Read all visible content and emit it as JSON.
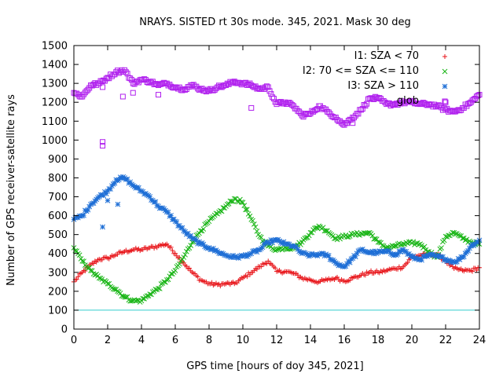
{
  "chart_data": {
    "type": "scatter",
    "title": "NRAYS. SISTED rt 30s mode. 345, 2021. Mask 30 deg",
    "xlabel": "GPS time [hours of doy 345, 2021]",
    "ylabel": "Number of GPS receiver-satellite rays",
    "xlim": [
      0,
      24
    ],
    "ylim": [
      0,
      1500
    ],
    "x_ticks": [
      0,
      2,
      4,
      6,
      8,
      10,
      12,
      14,
      16,
      18,
      20,
      22,
      24
    ],
    "y_ticks": [
      0,
      100,
      200,
      300,
      400,
      500,
      600,
      700,
      800,
      900,
      1000,
      1100,
      1200,
      1300,
      1400,
      1500
    ],
    "legend_position": "top-right",
    "reference_line": {
      "y": 100,
      "color": "#33cccc"
    },
    "series": [
      {
        "name": "I1: SZA < 70",
        "marker": "plus",
        "color": "#e8161b",
        "points": [
          [
            0.0,
            250
          ],
          [
            0.5,
            300
          ],
          [
            1.0,
            340
          ],
          [
            1.5,
            370
          ],
          [
            2.0,
            375
          ],
          [
            2.5,
            395
          ],
          [
            3.0,
            410
          ],
          [
            3.5,
            420
          ],
          [
            4.0,
            420
          ],
          [
            4.5,
            430
          ],
          [
            5.0,
            440
          ],
          [
            5.5,
            450
          ],
          [
            6.0,
            400
          ],
          [
            6.5,
            350
          ],
          [
            7.0,
            300
          ],
          [
            7.5,
            260
          ],
          [
            8.0,
            240
          ],
          [
            8.5,
            235
          ],
          [
            9.0,
            240
          ],
          [
            9.5,
            240
          ],
          [
            10.0,
            270
          ],
          [
            10.5,
            300
          ],
          [
            11.0,
            330
          ],
          [
            11.5,
            360
          ],
          [
            12.0,
            305
          ],
          [
            12.5,
            305
          ],
          [
            13.0,
            295
          ],
          [
            13.5,
            270
          ],
          [
            14.0,
            260
          ],
          [
            14.5,
            250
          ],
          [
            15.0,
            260
          ],
          [
            15.5,
            270
          ],
          [
            16.0,
            255
          ],
          [
            16.5,
            270
          ],
          [
            17.0,
            285
          ],
          [
            17.5,
            300
          ],
          [
            18.0,
            300
          ],
          [
            18.5,
            310
          ],
          [
            19.0,
            320
          ],
          [
            19.5,
            330
          ],
          [
            20.0,
            380
          ],
          [
            20.5,
            390
          ],
          [
            21.0,
            395
          ],
          [
            21.5,
            395
          ],
          [
            22.0,
            360
          ],
          [
            22.5,
            320
          ],
          [
            23.0,
            310
          ],
          [
            23.5,
            310
          ],
          [
            24.0,
            325
          ]
        ]
      },
      {
        "name": "I2: 70 <= SZA <= 110",
        "marker": "cross",
        "color": "#19b516",
        "points": [
          [
            0.0,
            430
          ],
          [
            0.5,
            360
          ],
          [
            1.0,
            310
          ],
          [
            1.5,
            270
          ],
          [
            2.0,
            240
          ],
          [
            2.5,
            210
          ],
          [
            3.0,
            170
          ],
          [
            3.5,
            150
          ],
          [
            4.0,
            150
          ],
          [
            4.5,
            185
          ],
          [
            5.0,
            215
          ],
          [
            5.5,
            260
          ],
          [
            6.0,
            310
          ],
          [
            6.5,
            380
          ],
          [
            7.0,
            460
          ],
          [
            7.5,
            520
          ],
          [
            8.0,
            570
          ],
          [
            8.5,
            610
          ],
          [
            9.0,
            650
          ],
          [
            9.5,
            690
          ],
          [
            10.0,
            670
          ],
          [
            10.5,
            580
          ],
          [
            11.0,
            490
          ],
          [
            11.5,
            440
          ],
          [
            12.0,
            420
          ],
          [
            12.5,
            430
          ],
          [
            13.0,
            430
          ],
          [
            13.5,
            460
          ],
          [
            14.0,
            510
          ],
          [
            14.5,
            545
          ],
          [
            15.0,
            520
          ],
          [
            15.5,
            480
          ],
          [
            16.0,
            490
          ],
          [
            16.5,
            500
          ],
          [
            17.0,
            505
          ],
          [
            17.5,
            510
          ],
          [
            18.0,
            460
          ],
          [
            18.5,
            430
          ],
          [
            19.0,
            440
          ],
          [
            19.5,
            450
          ],
          [
            20.0,
            455
          ],
          [
            20.5,
            450
          ],
          [
            21.0,
            410
          ],
          [
            21.5,
            380
          ],
          [
            22.0,
            490
          ],
          [
            22.5,
            510
          ],
          [
            23.0,
            480
          ],
          [
            23.5,
            460
          ],
          [
            24.0,
            450
          ]
        ]
      },
      {
        "name": "I3: SZA > 110",
        "marker": "star",
        "color": "#1f6fd6",
        "points": [
          [
            0.0,
            580
          ],
          [
            0.5,
            600
          ],
          [
            1.0,
            660
          ],
          [
            1.5,
            700
          ],
          [
            2.0,
            730
          ],
          [
            2.5,
            790
          ],
          [
            3.0,
            800
          ],
          [
            3.5,
            760
          ],
          [
            4.0,
            730
          ],
          [
            4.5,
            700
          ],
          [
            5.0,
            650
          ],
          [
            5.5,
            620
          ],
          [
            6.0,
            570
          ],
          [
            6.5,
            520
          ],
          [
            7.0,
            480
          ],
          [
            7.5,
            450
          ],
          [
            8.0,
            430
          ],
          [
            8.5,
            410
          ],
          [
            9.0,
            390
          ],
          [
            9.5,
            380
          ],
          [
            10.0,
            385
          ],
          [
            10.5,
            400
          ],
          [
            11.0,
            420
          ],
          [
            11.5,
            460
          ],
          [
            12.0,
            470
          ],
          [
            12.5,
            450
          ],
          [
            13.0,
            440
          ],
          [
            13.5,
            400
          ],
          [
            14.0,
            390
          ],
          [
            14.5,
            395
          ],
          [
            15.0,
            390
          ],
          [
            15.5,
            350
          ],
          [
            16.0,
            330
          ],
          [
            16.5,
            375
          ],
          [
            17.0,
            420
          ],
          [
            17.5,
            405
          ],
          [
            18.0,
            405
          ],
          [
            18.5,
            410
          ],
          [
            19.0,
            395
          ],
          [
            19.5,
            420
          ],
          [
            20.0,
            380
          ],
          [
            20.5,
            370
          ],
          [
            21.0,
            390
          ],
          [
            21.5,
            385
          ],
          [
            22.0,
            370
          ],
          [
            22.5,
            355
          ],
          [
            23.0,
            380
          ],
          [
            23.5,
            440
          ],
          [
            24.0,
            470
          ]
        ],
        "outliers": [
          [
            1.7,
            540
          ],
          [
            2.0,
            680
          ],
          [
            2.6,
            660
          ]
        ]
      },
      {
        "name": "glob",
        "marker": "square",
        "color": "#b020ee",
        "points": [
          [
            0.0,
            1250
          ],
          [
            0.5,
            1230
          ],
          [
            1.0,
            1290
          ],
          [
            1.5,
            1300
          ],
          [
            2.0,
            1330
          ],
          [
            2.5,
            1360
          ],
          [
            3.0,
            1370
          ],
          [
            3.5,
            1300
          ],
          [
            4.0,
            1320
          ],
          [
            4.5,
            1310
          ],
          [
            5.0,
            1290
          ],
          [
            5.5,
            1300
          ],
          [
            6.0,
            1280
          ],
          [
            6.5,
            1270
          ],
          [
            7.0,
            1290
          ],
          [
            7.5,
            1270
          ],
          [
            8.0,
            1260
          ],
          [
            8.5,
            1280
          ],
          [
            9.0,
            1290
          ],
          [
            9.5,
            1310
          ],
          [
            10.0,
            1300
          ],
          [
            10.5,
            1290
          ],
          [
            11.0,
            1270
          ],
          [
            11.5,
            1280
          ],
          [
            12.0,
            1190
          ],
          [
            12.5,
            1200
          ],
          [
            13.0,
            1180
          ],
          [
            13.5,
            1130
          ],
          [
            14.0,
            1140
          ],
          [
            14.5,
            1180
          ],
          [
            15.0,
            1150
          ],
          [
            15.5,
            1120
          ],
          [
            16.0,
            1080
          ],
          [
            16.5,
            1120
          ],
          [
            17.0,
            1160
          ],
          [
            17.5,
            1220
          ],
          [
            18.0,
            1220
          ],
          [
            18.5,
            1190
          ],
          [
            19.0,
            1190
          ],
          [
            19.5,
            1200
          ],
          [
            20.0,
            1200
          ],
          [
            20.5,
            1190
          ],
          [
            21.0,
            1190
          ],
          [
            21.5,
            1180
          ],
          [
            22.0,
            1160
          ],
          [
            22.5,
            1150
          ],
          [
            23.0,
            1170
          ],
          [
            23.5,
            1200
          ],
          [
            24.0,
            1240
          ]
        ],
        "outliers": [
          [
            1.7,
            970
          ],
          [
            1.7,
            990
          ],
          [
            1.7,
            1280
          ],
          [
            2.9,
            1230
          ],
          [
            3.5,
            1250
          ],
          [
            5.0,
            1240
          ],
          [
            10.5,
            1170
          ],
          [
            16.5,
            1090
          ],
          [
            22.0,
            1200
          ]
        ]
      }
    ]
  }
}
